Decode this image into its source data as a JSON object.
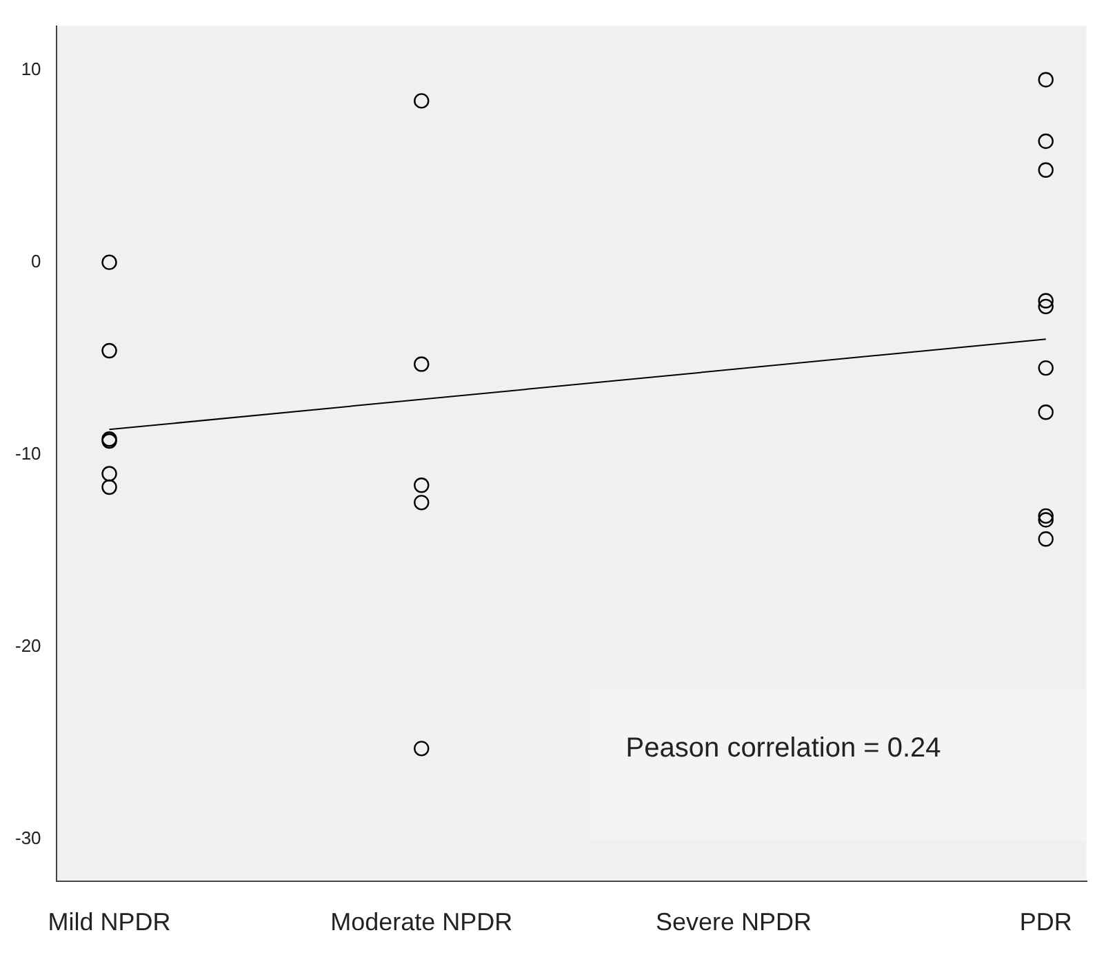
{
  "chart_data": {
    "type": "scatter",
    "categories": [
      "Mild NPDR",
      "Moderate NPDR",
      "Severe NPDR",
      "PDR"
    ],
    "series": [
      {
        "marker": "circle",
        "color": "#000000",
        "x": [
          "Mild NPDR",
          "Mild NPDR",
          "Mild NPDR",
          "Mild NPDR",
          "Mild NPDR",
          "Mild NPDR",
          "Moderate NPDR",
          "Moderate NPDR",
          "Moderate NPDR",
          "Moderate NPDR",
          "Moderate NPDR",
          "PDR",
          "PDR",
          "PDR",
          "PDR",
          "PDR",
          "PDR",
          "PDR",
          "PDR",
          "PDR",
          "PDR"
        ],
        "values": [
          0,
          -4.6,
          -9.2,
          -9.3,
          -11.0,
          -11.7,
          8.4,
          -5.3,
          -11.6,
          -12.5,
          -25.3,
          9.5,
          6.3,
          4.8,
          -2.0,
          -2.3,
          -5.5,
          -7.8,
          -13.2,
          -13.4,
          -14.4
        ]
      },
      {
        "type": "line",
        "marker": "none",
        "color": "#000000",
        "x": [
          "Mild NPDR",
          "PDR"
        ],
        "values": [
          -8.7,
          -4.0
        ]
      }
    ],
    "ylim": [
      -32.2,
      12.3
    ],
    "yticks": [
      -30,
      -20,
      -10,
      0,
      10
    ],
    "grid": false,
    "legend": false,
    "line_style": "solid",
    "annotations": [
      "Peason correlation = 0.24"
    ]
  }
}
